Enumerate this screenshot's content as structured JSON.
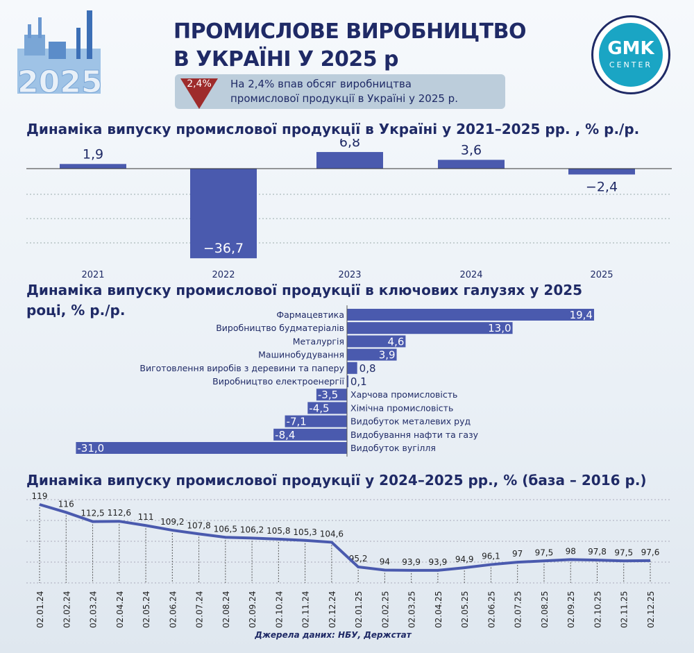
{
  "header": {
    "title_line1": "ПРОМИСЛОВЕ ВИРОБНИЦТВО",
    "title_line2": "В УКРАЇНІ У 2025 р",
    "illustration_year": "2025",
    "badge_value": "2,4%",
    "badge_icon": "triangle-down-icon",
    "badge_text_line1": "На 2,4% впав обсяг виробництва",
    "badge_text_line2": "промислової продукції  в Україні у 2025 р."
  },
  "logo": {
    "text1": "GMK",
    "text2": "CENTER"
  },
  "colors": {
    "bar": "#4a5aae",
    "title": "#1f2a66",
    "badge_red": "#9e2b2b",
    "logo": "#1aa5c4"
  },
  "chart_data": [
    {
      "type": "bar",
      "title": "Динаміка випуску промислової продукції в Україні у 2021–2025 рр. , % р./р.",
      "categories": [
        "2021",
        "2022",
        "2023",
        "2024",
        "2025"
      ],
      "values": [
        1.9,
        -36.7,
        6.8,
        3.6,
        -2.4
      ],
      "labels": [
        "1,9",
        "−36,7",
        "6,8",
        "3,6",
        "−2,4"
      ],
      "grid": true
    },
    {
      "type": "bar",
      "orientation": "horizontal",
      "title": "Динаміка випуску промислової продукції в ключових галузях у 2025 році, % р./р.",
      "categories": [
        "Фармацевтика",
        "Виробництво будматеріалів",
        "Металургія",
        "Машинобудування",
        "Виготовлення виробів з деревини та паперу",
        "Виробництво електроенергії",
        "Харчова промисловість",
        "Хімічна промисловість",
        "Видобуток металевих руд",
        "Видобування нафти та газу",
        "Видобуток вугілля"
      ],
      "values": [
        19.4,
        13.0,
        4.6,
        3.9,
        0.8,
        0.1,
        -3.5,
        -4.5,
        -7.1,
        -8.4,
        -31.0
      ],
      "labels": [
        "19,4",
        "13,0",
        "4,6",
        "3,9",
        "0,8",
        "0,1",
        "-3,5",
        "-4,5",
        "-7,1",
        "-8,4",
        "-31,0"
      ]
    },
    {
      "type": "line",
      "title": "Динаміка випуску промислової продукції у 2024–2025 рр., % (база – 2016 р.)",
      "x": [
        "02.01.24",
        "02.02.24",
        "02.03.24",
        "02.04.24",
        "02.05.24",
        "02.06.24",
        "02.07.24",
        "02.08.24",
        "02.09.24",
        "02.10.24",
        "02.11.24",
        "02.12.24",
        "02.01.25",
        "02.02.25",
        "02.03.25",
        "02.04.25",
        "02.05.25",
        "02.06.25",
        "02.07.25",
        "02.08.25",
        "02.09.25",
        "02.10.25",
        "02.11.25",
        "02.12.25"
      ],
      "values": [
        119,
        116,
        112.5,
        112.6,
        111,
        109.2,
        107.8,
        106.5,
        106.2,
        105.8,
        105.3,
        104.6,
        95.2,
        94,
        93.9,
        93.9,
        94.9,
        96.1,
        97,
        97.5,
        98,
        97.8,
        97.5,
        97.6
      ],
      "labels": [
        "119",
        "116",
        "112,5",
        "112,6",
        "111",
        "109,2",
        "107,8",
        "106,5",
        "106,2",
        "105,8",
        "105,3",
        "104,6",
        "95,2",
        "94",
        "93,9",
        "93,9",
        "94,9",
        "96,1",
        "97",
        "97,5",
        "98",
        "97,8",
        "97,5",
        "97,6"
      ],
      "grid": true
    }
  ],
  "source": "Джерела даних: НБУ, Держстат"
}
